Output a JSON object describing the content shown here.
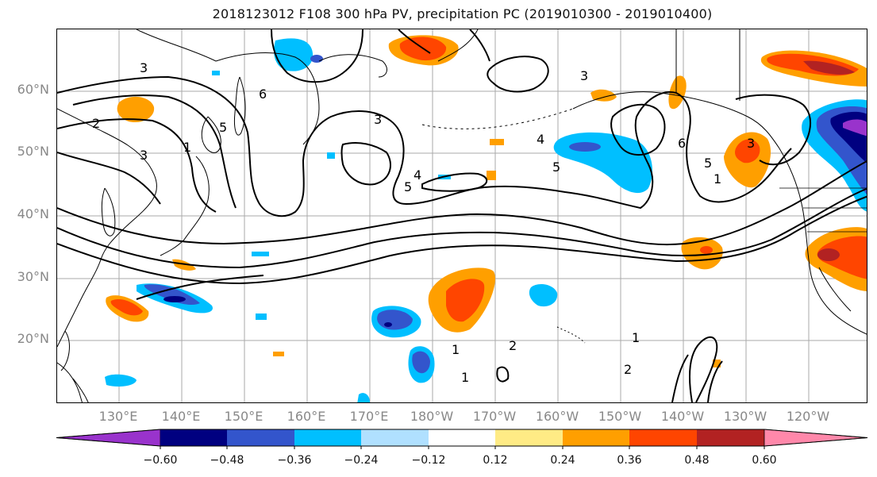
{
  "title": "2018123012 F108 300 hPa PV, precipitation PC (2019010300 - 2019010400)",
  "map": {
    "lon_range": [
      120,
      250
    ],
    "lat_range": [
      10,
      70
    ],
    "lat_ticks": [
      "20°N",
      "30°N",
      "40°N",
      "50°N",
      "60°N"
    ],
    "lon_ticks": [
      "130°E",
      "140°E",
      "150°E",
      "160°E",
      "170°E",
      "180°W",
      "170°W",
      "160°W",
      "150°W",
      "140°W",
      "130°W",
      "120°W"
    ],
    "contour_labels": [
      "1",
      "1",
      "1",
      "2",
      "2",
      "2",
      "2",
      "3",
      "3",
      "3",
      "3",
      "3",
      "4",
      "4",
      "4",
      "5",
      "5",
      "5",
      "5",
      "5",
      "6",
      "6",
      "1",
      "1"
    ],
    "colors": {
      "c_-0.72": "#9933cc",
      "c_-0.60": "#000088",
      "c_-0.48": "#3355cc",
      "c_-0.36": "#00bbff",
      "c_-0.24": "#aaddff",
      "c_0.12": "#ffee88",
      "c_0.24": "#ff9900",
      "c_0.36": "#ff4400",
      "c_0.48": "#aa2222",
      "c_0.60": "#ff88aa"
    }
  },
  "colorbar": {
    "ticks": [
      "−0.60",
      "−0.48",
      "−0.36",
      "−0.24",
      "−0.12",
      "0.12",
      "0.24",
      "0.36",
      "0.48",
      "0.60"
    ],
    "segment_colors": [
      "#9933cc",
      "#000080",
      "#3355cc",
      "#00bfff",
      "#b0e0ff",
      "#ffffff",
      "#ffeb85",
      "#ff9f00",
      "#ff4500",
      "#b22222",
      "#ff88aa"
    ]
  }
}
